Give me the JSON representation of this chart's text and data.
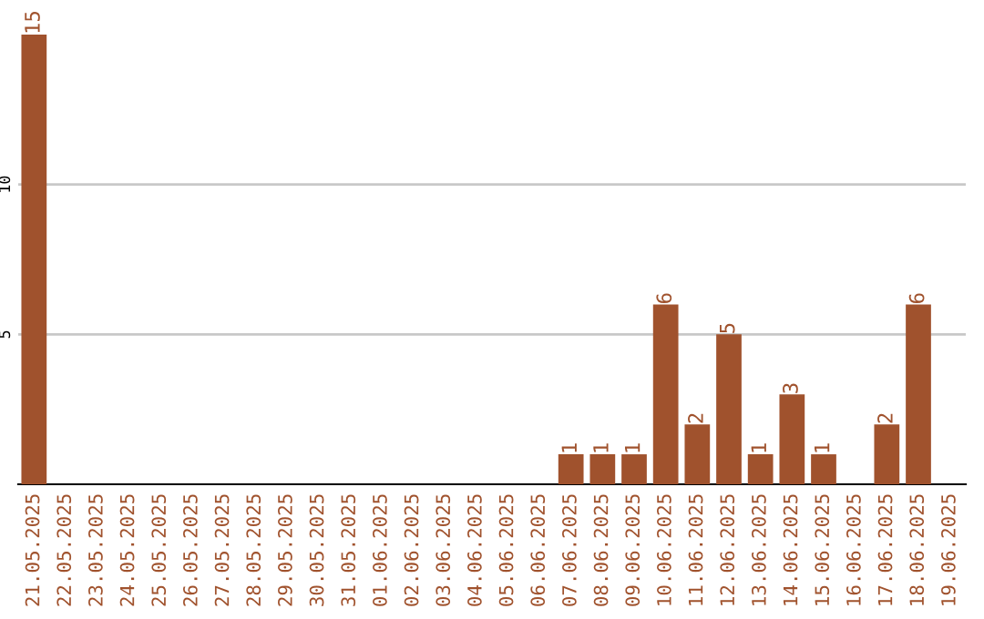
{
  "chart_data": {
    "type": "bar",
    "categories": [
      "21.05.2025",
      "22.05.2025",
      "23.05.2025",
      "24.05.2025",
      "25.05.2025",
      "26.05.2025",
      "27.05.2025",
      "28.05.2025",
      "29.05.2025",
      "30.05.2025",
      "31.05.2025",
      "01.06.2025",
      "02.06.2025",
      "03.06.2025",
      "04.06.2025",
      "05.06.2025",
      "06.06.2025",
      "07.06.2025",
      "08.06.2025",
      "09.06.2025",
      "10.06.2025",
      "11.06.2025",
      "12.06.2025",
      "13.06.2025",
      "14.06.2025",
      "15.06.2025",
      "16.06.2025",
      "17.06.2025",
      "18.06.2025",
      "19.06.2025"
    ],
    "values": [
      15,
      0,
      0,
      0,
      0,
      0,
      0,
      0,
      0,
      0,
      0,
      0,
      0,
      0,
      0,
      0,
      0,
      1,
      1,
      1,
      6,
      2,
      5,
      1,
      3,
      1,
      0,
      2,
      6,
      0
    ],
    "value_labels": [
      "15",
      null,
      null,
      null,
      null,
      null,
      null,
      null,
      null,
      null,
      null,
      null,
      null,
      null,
      null,
      null,
      null,
      "1",
      "1",
      "1",
      "6",
      "2",
      "5",
      "1",
      "3",
      "1",
      null,
      "2",
      "6",
      null
    ],
    "color": "#a0522d",
    "ylim": [
      0,
      15
    ],
    "yticks": [
      5,
      10
    ],
    "grid": "y"
  }
}
